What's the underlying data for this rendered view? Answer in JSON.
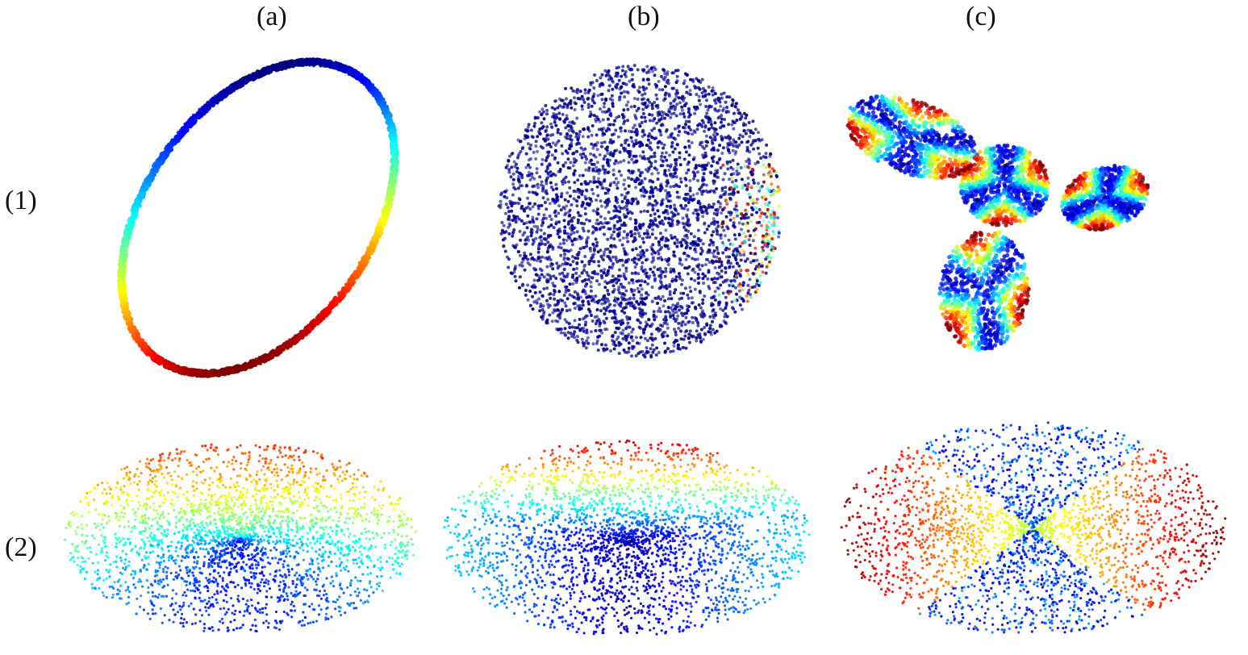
{
  "column_labels": {
    "a": "(a)",
    "b": "(b)",
    "c": "(c)"
  },
  "row_labels": {
    "r1": "(1)",
    "r2": "(2)"
  },
  "colormap": [
    "#00007f",
    "#0000ff",
    "#007fff",
    "#00ffff",
    "#7fff7f",
    "#ffff00",
    "#ff7f00",
    "#ff0000",
    "#7f0000"
  ]
}
